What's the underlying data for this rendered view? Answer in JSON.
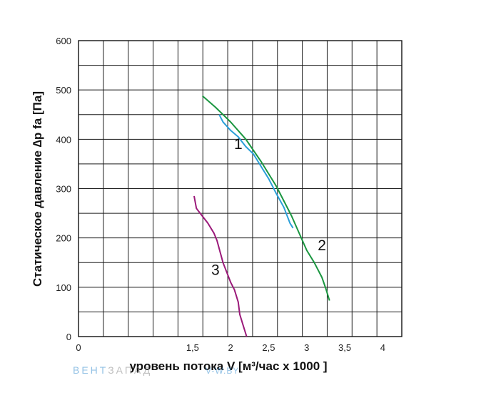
{
  "chart_data": {
    "type": "line",
    "xlabel": "уровень потока  V [м³/час x 1000 ]",
    "ylabel": "Статическое давление  ∆p fa [Па]",
    "xlim": [
      0,
      4.25
    ],
    "ylim": [
      0,
      600
    ],
    "x_ticks": [
      "0",
      "1,5",
      "2",
      "2,5",
      "3",
      "3,5",
      "4"
    ],
    "y_ticks": [
      "0",
      "100",
      "200",
      "300",
      "400",
      "500",
      "600"
    ],
    "grid": true,
    "series": [
      {
        "name": "1",
        "color": "#2a9fd8",
        "points": [
          [
            1.85,
            450
          ],
          [
            1.9,
            435
          ],
          [
            2.0,
            418
          ],
          [
            2.1,
            405
          ],
          [
            2.2,
            385
          ],
          [
            2.3,
            370
          ],
          [
            2.4,
            345
          ],
          [
            2.5,
            320
          ],
          [
            2.6,
            290
          ],
          [
            2.7,
            262
          ],
          [
            2.78,
            230
          ],
          [
            2.82,
            220
          ]
        ]
      },
      {
        "name": "2",
        "color": "#1a9640",
        "points": [
          [
            1.63,
            488
          ],
          [
            1.8,
            465
          ],
          [
            2.0,
            435
          ],
          [
            2.2,
            400
          ],
          [
            2.4,
            355
          ],
          [
            2.6,
            305
          ],
          [
            2.8,
            245
          ],
          [
            3.0,
            175
          ],
          [
            3.1,
            150
          ],
          [
            3.2,
            120
          ],
          [
            3.25,
            98
          ],
          [
            3.3,
            73
          ]
        ]
      },
      {
        "name": "3",
        "color": "#9b1a7a",
        "points": [
          [
            1.52,
            285
          ],
          [
            1.55,
            260
          ],
          [
            1.6,
            250
          ],
          [
            1.7,
            230
          ],
          [
            1.78,
            210
          ],
          [
            1.82,
            195
          ],
          [
            1.9,
            150
          ],
          [
            2.0,
            110
          ],
          [
            2.05,
            95
          ],
          [
            2.1,
            70
          ],
          [
            2.12,
            45
          ],
          [
            2.17,
            20
          ],
          [
            2.21,
            0
          ]
        ]
      }
    ]
  },
  "watermark": {
    "brand_part1": "ВЕНТ",
    "brand_part2": "ЗАПАД",
    "site": "V-W.BY",
    "color": "#3a8fd0"
  }
}
